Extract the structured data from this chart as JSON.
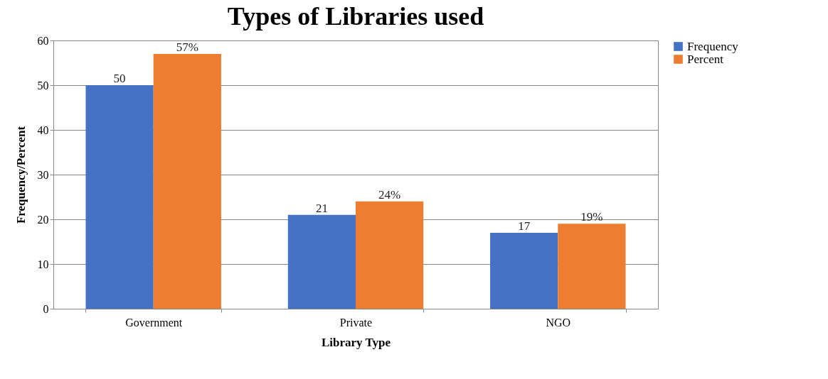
{
  "chart_data": {
    "type": "bar",
    "title": "Types of Libraries used",
    "xlabel": "Library Type",
    "ylabel": "Frequency/Percent",
    "categories": [
      "Government",
      "Private",
      "NGO"
    ],
    "series": [
      {
        "name": "Frequency",
        "color": "#4472c4",
        "values": [
          50,
          21,
          17
        ],
        "value_labels": [
          "50",
          "21",
          "17"
        ]
      },
      {
        "name": "Percent",
        "color": "#ed7d31",
        "values": [
          57,
          24,
          19
        ],
        "value_labels": [
          "57%",
          "24%",
          "19%"
        ]
      }
    ],
    "ylim": [
      0,
      60
    ],
    "yticks": [
      0,
      10,
      20,
      30,
      40,
      50,
      60
    ],
    "grid": "y",
    "legend": "right"
  }
}
